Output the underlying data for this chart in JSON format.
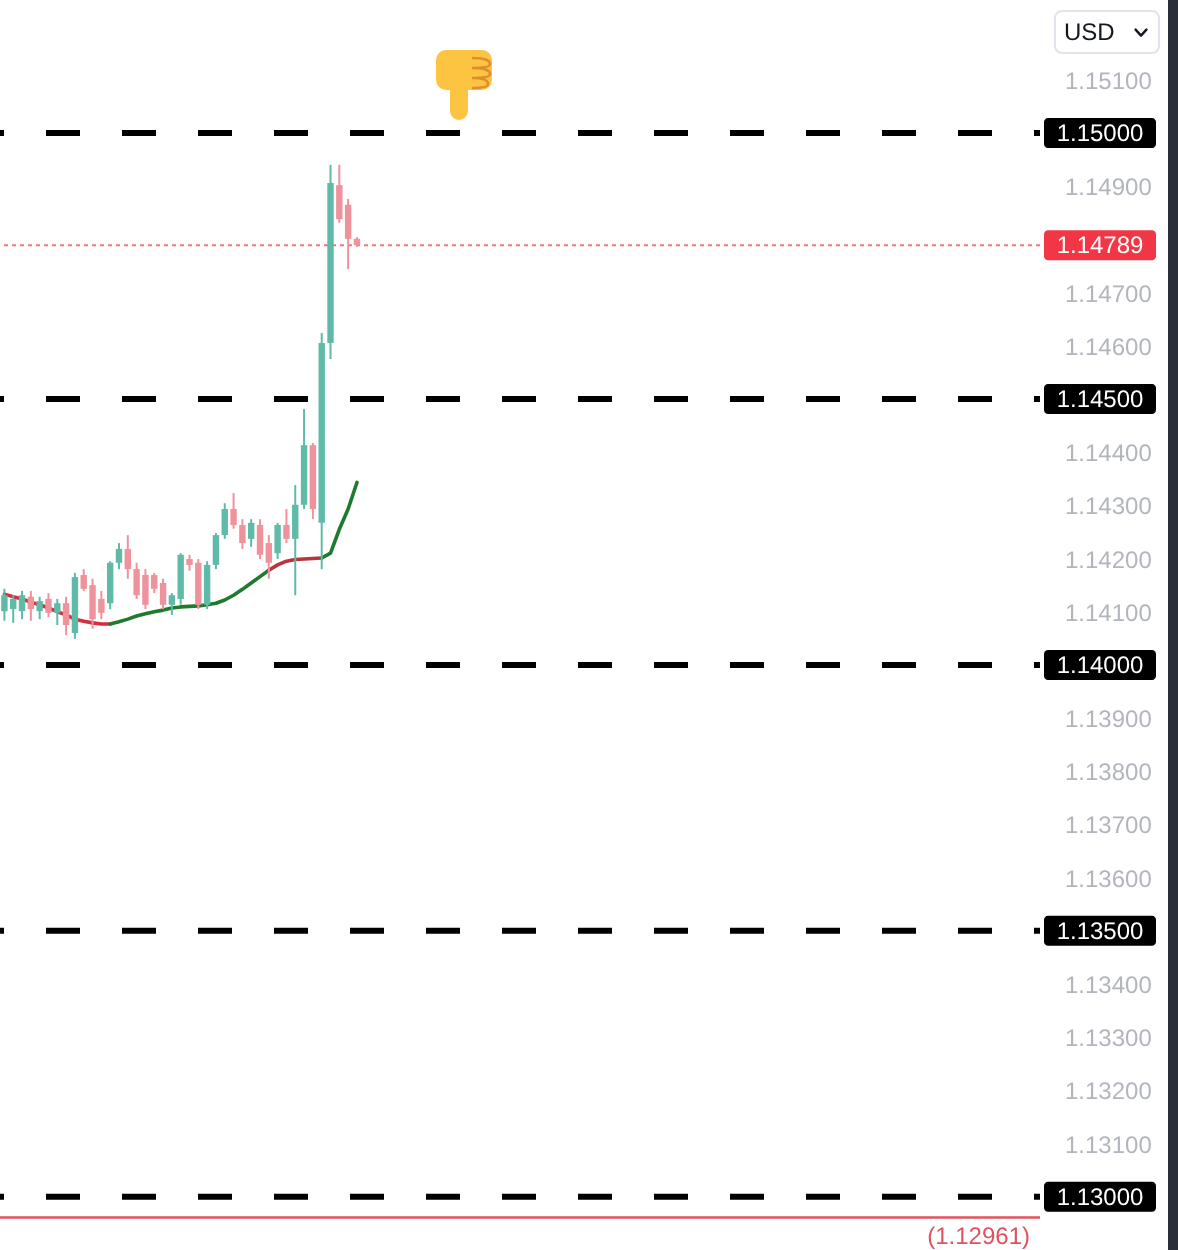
{
  "chart_data": {
    "type": "candlestick",
    "ylabel": "USD",
    "categories": [
      null,
      null,
      null,
      null,
      null,
      null,
      null,
      null,
      null,
      null,
      null,
      null,
      null,
      null,
      null,
      null,
      null,
      null,
      null,
      null,
      null,
      null,
      null,
      null,
      null,
      null,
      null,
      null,
      null,
      null,
      null,
      null,
      null,
      null,
      null,
      null,
      null,
      null,
      null,
      null,
      null,
      null,
      null,
      null,
      null,
      null,
      null,
      null,
      null,
      null,
      null,
      null,
      null,
      null,
      null,
      null,
      null,
      null,
      null,
      null,
      null,
      null,
      null,
      null,
      null,
      null,
      null,
      null,
      null,
      null,
      null,
      null,
      null,
      null,
      null,
      null,
      null,
      null,
      null,
      null,
      null,
      null,
      null,
      null,
      null,
      null,
      null,
      null,
      null,
      null,
      null,
      null,
      null,
      null,
      null,
      null,
      null,
      null,
      null,
      null,
      null,
      null,
      null,
      null,
      null,
      null,
      null,
      null,
      null,
      null,
      null,
      null,
      null,
      null,
      null,
      null,
      null,
      null
    ],
    "ohlc": [
      [
        1.14101,
        1.14143,
        1.14083,
        1.14131
      ],
      [
        1.14105,
        1.14131,
        1.14079,
        1.14124
      ],
      [
        1.14101,
        1.14139,
        1.14086,
        1.14131
      ],
      [
        1.14128,
        1.14139,
        1.14083,
        1.14105
      ],
      [
        1.14101,
        1.14128,
        1.14086,
        1.1412
      ],
      [
        1.14124,
        1.14135,
        1.1409,
        1.14098
      ],
      [
        1.14098,
        1.14124,
        1.14075,
        1.14116
      ],
      [
        1.14116,
        1.14128,
        1.14056,
        1.14075
      ],
      [
        1.1406,
        1.14173,
        1.14049,
        1.14165
      ],
      [
        1.14169,
        1.1418,
        1.14139,
        1.14143
      ],
      [
        1.1415,
        1.14162,
        1.14068,
        1.14086
      ],
      [
        1.14124,
        1.14139,
        1.14086,
        1.14098
      ],
      [
        1.14116,
        1.14195,
        1.14105,
        1.14192
      ],
      [
        1.14192,
        1.14229,
        1.1418,
        1.14218
      ],
      [
        1.14218,
        1.14244,
        1.14162,
        1.1418
      ],
      [
        1.1418,
        1.14192,
        1.14124,
        1.14131
      ],
      [
        1.14169,
        1.1418,
        1.14105,
        1.14113
      ],
      [
        1.14169,
        1.14173,
        1.14135,
        1.14143
      ],
      [
        1.14154,
        1.14162,
        1.14105,
        1.14113
      ],
      [
        1.14113,
        1.14135,
        1.14094,
        1.14131
      ],
      [
        1.14124,
        1.1421,
        1.14113,
        1.14207
      ],
      [
        1.14199,
        1.14207,
        1.14177,
        1.14188
      ],
      [
        1.14192,
        1.14199,
        1.14105,
        1.14113
      ],
      [
        1.14113,
        1.14195,
        1.14105,
        1.14188
      ],
      [
        1.14188,
        1.14248,
        1.1418,
        1.14244
      ],
      [
        1.14244,
        1.14304,
        1.14237,
        1.14293
      ],
      [
        1.14293,
        1.14323,
        1.14256,
        1.14263
      ],
      [
        1.14263,
        1.14274,
        1.14218,
        1.14229
      ],
      [
        1.14237,
        1.14274,
        1.14222,
        1.14267
      ],
      [
        1.14263,
        1.14274,
        1.14199,
        1.14207
      ],
      [
        1.14229,
        1.14244,
        1.14162,
        1.14192
      ],
      [
        1.1421,
        1.14267,
        1.14199,
        1.14263
      ],
      [
        1.14263,
        1.14293,
        1.14229,
        1.14237
      ],
      [
        1.14237,
        1.14338,
        1.14131,
        1.14301
      ],
      [
        1.14301,
        1.14481,
        1.14293,
        1.14413
      ],
      [
        1.14413,
        1.14417,
        1.14274,
        1.14293
      ],
      [
        1.14267,
        1.14624,
        1.1418,
        1.14605
      ],
      [
        1.14605,
        1.1494,
        1.14575,
        1.14906
      ],
      [
        1.14902,
        1.1494,
        1.14831,
        1.14838
      ],
      [
        1.14865,
        1.14876,
        1.14744,
        1.14801
      ],
      [
        1.14801,
        1.14804,
        1.14786,
        1.14789
      ],
      null,
      null,
      null,
      null,
      null,
      null,
      null,
      null,
      null,
      null,
      null,
      null,
      null,
      null,
      null,
      null,
      null,
      null,
      null,
      null,
      null,
      null,
      null,
      null,
      null,
      null,
      null,
      null,
      null,
      null,
      null,
      null,
      null,
      null,
      null,
      null,
      null,
      null,
      null,
      null,
      null,
      null,
      null,
      null,
      null,
      null,
      null,
      null,
      null,
      null,
      null,
      null,
      null,
      null,
      null,
      null,
      null,
      null,
      null,
      null,
      null,
      null,
      null,
      null,
      null,
      null,
      null,
      null,
      null,
      null,
      null,
      null,
      null,
      null,
      null,
      null,
      null
    ],
    "colors": [
      "#5fbaa7",
      "#5fbaa7",
      "#5fbaa7",
      "#ef929c",
      "#5fbaa7",
      "#ef929c",
      "#5fbaa7",
      "#ef929c",
      "#5fbaa7",
      "#ef929c",
      "#ef929c",
      "#ef929c",
      "#5fbaa7",
      "#5fbaa7",
      "#ef929c",
      "#ef929c",
      "#ef929c",
      "#ef929c",
      "#ef929c",
      "#5fbaa7",
      "#5fbaa7",
      "#ef929c",
      "#ef929c",
      "#5fbaa7",
      "#5fbaa7",
      "#5fbaa7",
      "#ef929c",
      "#ef929c",
      "#5fbaa7",
      "#ef929c",
      "#ef929c",
      "#5fbaa7",
      "#ef929c",
      "#5fbaa7",
      "#5fbaa7",
      "#ef929c",
      "#5fbaa7",
      "#5fbaa7",
      "#ef929c",
      "#ef929c",
      "#ef929c",
      null,
      null,
      null,
      null,
      null,
      null,
      null,
      null,
      null,
      null,
      null,
      null,
      null,
      null,
      null,
      null,
      null,
      null,
      null,
      null,
      null,
      null,
      null,
      null,
      null,
      null,
      null,
      null,
      null,
      null,
      null,
      null,
      null,
      null,
      null,
      null,
      null,
      null,
      null,
      null,
      null,
      null,
      null,
      null,
      null,
      null,
      null,
      null,
      null,
      null,
      null,
      null,
      null,
      null,
      null,
      null,
      null,
      null,
      null,
      null,
      null,
      null,
      null,
      null,
      null,
      null,
      null,
      null,
      null,
      null,
      null,
      null,
      null,
      null,
      null,
      null,
      null
    ],
    "series": [
      {
        "type": "line",
        "color": "#d3303f",
        "values": [
          1.14133,
          1.14128,
          1.14124,
          1.14118,
          1.14113,
          1.14107,
          1.141,
          1.14094,
          1.14086,
          1.14082,
          1.14079,
          1.14077,
          1.14077,
          null,
          null,
          null,
          null,
          null,
          null,
          null,
          null,
          null,
          null,
          null,
          null,
          null,
          null,
          null,
          null,
          null,
          null,
          null,
          null,
          null,
          null,
          null,
          null,
          null,
          null,
          null,
          null,
          null,
          null,
          null,
          null,
          null,
          null,
          null,
          null,
          null,
          null,
          null,
          null,
          null,
          null,
          null,
          null,
          null,
          null,
          null,
          null,
          null,
          null,
          null,
          null,
          null,
          null,
          null,
          null,
          null,
          null,
          null,
          null,
          null,
          null,
          null,
          null,
          null,
          null,
          null,
          null,
          null,
          null,
          null,
          null,
          null,
          null,
          null,
          null,
          null,
          null,
          null,
          null,
          null,
          null,
          null,
          null,
          null,
          null,
          null,
          null,
          null,
          null,
          null,
          null,
          null,
          null,
          null,
          null,
          null,
          null,
          null,
          null,
          null,
          null,
          null,
          null,
          null
        ]
      },
      {
        "type": "line",
        "color": "#1f7a2e",
        "values": [
          null,
          null,
          null,
          null,
          null,
          null,
          null,
          null,
          null,
          null,
          null,
          null,
          1.14077,
          1.14081,
          1.14086,
          1.14092,
          1.14096,
          1.141,
          1.14103,
          1.14107,
          1.14109,
          1.1411,
          1.14111,
          1.14113,
          1.14116,
          1.14122,
          1.14131,
          1.14142,
          1.14154,
          1.14166,
          1.14178,
          null,
          null,
          null,
          null,
          null,
          null,
          null,
          null,
          null,
          null,
          null,
          null,
          null,
          null,
          null,
          null,
          null,
          null,
          null,
          null,
          null,
          null,
          null,
          null,
          null,
          null,
          null,
          null,
          null,
          null,
          null,
          null,
          null,
          null,
          null,
          null,
          null,
          null,
          null,
          null,
          null,
          null,
          null,
          null,
          null,
          null,
          null,
          null,
          null,
          null,
          null,
          null,
          null,
          null,
          null,
          null,
          null,
          null,
          null,
          null,
          null,
          null,
          null,
          null,
          null,
          null,
          null,
          null,
          null,
          null,
          null,
          null,
          null,
          null,
          null,
          null,
          null,
          null,
          null,
          null,
          null,
          null,
          null,
          null,
          null,
          null,
          null
        ]
      },
      {
        "type": "line",
        "color": "#b8343e",
        "values": [
          null,
          null,
          null,
          null,
          null,
          null,
          null,
          null,
          null,
          null,
          null,
          null,
          null,
          null,
          null,
          null,
          null,
          null,
          null,
          null,
          null,
          null,
          null,
          null,
          null,
          null,
          null,
          null,
          null,
          null,
          1.14178,
          1.14188,
          1.14195,
          1.14198,
          1.14199,
          1.142,
          1.14201,
          null,
          null,
          null,
          null,
          null,
          null,
          null,
          null,
          null,
          null,
          null,
          null,
          null,
          null,
          null,
          null,
          null,
          null,
          null,
          null,
          null,
          null,
          null,
          null,
          null,
          null,
          null,
          null,
          null,
          null,
          null,
          null,
          null,
          null,
          null,
          null,
          null,
          null,
          null,
          null,
          null,
          null,
          null,
          null,
          null,
          null,
          null,
          null,
          null,
          null,
          null,
          null,
          null,
          null,
          null,
          null,
          null,
          null,
          null,
          null,
          null,
          null,
          null,
          null,
          null,
          null,
          null,
          null,
          null,
          null,
          null,
          null,
          null,
          null,
          null,
          null,
          null,
          null,
          null,
          null,
          null
        ]
      },
      {
        "type": "line",
        "color": "#1f7a2e",
        "values": [
          null,
          null,
          null,
          null,
          null,
          null,
          null,
          null,
          null,
          null,
          null,
          null,
          null,
          null,
          null,
          null,
          null,
          null,
          null,
          null,
          null,
          null,
          null,
          null,
          null,
          null,
          null,
          null,
          null,
          null,
          null,
          null,
          null,
          null,
          null,
          null,
          1.14201,
          1.1421,
          1.14255,
          1.14293,
          1.14343,
          null,
          null,
          null,
          null,
          null,
          null,
          null,
          null,
          null,
          null,
          null,
          null,
          null,
          null,
          null,
          null,
          null,
          null,
          null,
          null,
          null,
          null,
          null,
          null,
          null,
          null,
          null,
          null,
          null,
          null,
          null,
          null,
          null,
          null,
          null,
          null,
          null,
          null,
          null,
          null,
          null,
          null,
          null,
          null,
          null,
          null,
          null,
          null,
          null,
          null,
          null,
          null,
          null,
          null,
          null,
          null,
          null,
          null,
          null,
          null,
          null,
          null,
          null,
          null,
          null,
          null,
          null,
          null,
          null,
          null,
          null,
          null,
          null,
          null,
          null,
          null,
          null
        ]
      }
    ],
    "ylim": [
      1.129,
      1.1525
    ],
    "yticks": [
      {
        "value": 1.151,
        "label": "1.15100"
      },
      {
        "value": 1.149,
        "label": "1.14900"
      },
      {
        "value": 1.147,
        "label": "1.14700"
      },
      {
        "value": 1.146,
        "label": "1.14600"
      },
      {
        "value": 1.144,
        "label": "1.14400"
      },
      {
        "value": 1.143,
        "label": "1.14300"
      },
      {
        "value": 1.142,
        "label": "1.14200"
      },
      {
        "value": 1.141,
        "label": "1.14100"
      },
      {
        "value": 1.139,
        "label": "1.13900"
      },
      {
        "value": 1.138,
        "label": "1.13800"
      },
      {
        "value": 1.137,
        "label": "1.13700"
      },
      {
        "value": 1.136,
        "label": "1.13600"
      },
      {
        "value": 1.134,
        "label": "1.13400"
      },
      {
        "value": 1.133,
        "label": "1.13300"
      },
      {
        "value": 1.132,
        "label": "1.13200"
      },
      {
        "value": 1.131,
        "label": "1.13100"
      }
    ],
    "ref_lines": [
      {
        "axis": "y",
        "value": 1.15,
        "label": "1.15000",
        "color": "#000000",
        "line_style": "dashed"
      },
      {
        "axis": "y",
        "value": 1.145,
        "label": "1.14500",
        "color": "#000000",
        "line_style": "dashed"
      },
      {
        "axis": "y",
        "value": 1.14,
        "label": "1.14000",
        "color": "#000000",
        "line_style": "dashed"
      },
      {
        "axis": "y",
        "value": 1.135,
        "label": "1.13500",
        "color": "#000000",
        "line_style": "dashed"
      },
      {
        "axis": "y",
        "value": 1.13,
        "label": "1.13000",
        "color": "#000000",
        "line_style": "dashed"
      },
      {
        "axis": "y",
        "value": 1.14789,
        "label": "1.14789",
        "color": "#f23645",
        "line_style": "dotted"
      },
      {
        "axis": "y",
        "value": 1.12961,
        "label": "(1.12961)",
        "color": "#e0525e",
        "line_style": "solid"
      }
    ],
    "tick_labels": "y"
  }
}
